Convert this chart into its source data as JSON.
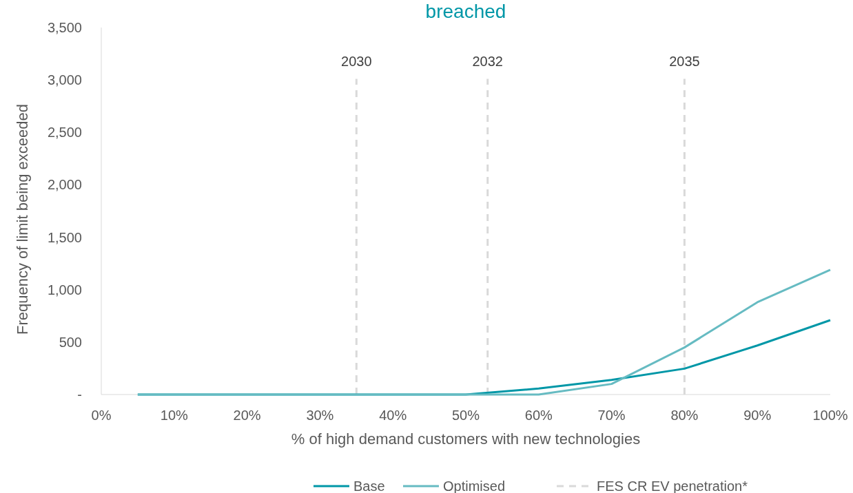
{
  "chart_data": {
    "type": "line",
    "title": "breached",
    "xlabel": "% of high demand customers with new technologies",
    "ylabel": "Frequency of limit being exceeded",
    "x": [
      5,
      10,
      20,
      30,
      40,
      50,
      60,
      70,
      80,
      90,
      100
    ],
    "series": [
      {
        "name": "Base",
        "color": "#0097a7",
        "values": [
          0,
          0,
          0,
          0,
          0,
          0,
          57,
          139,
          247,
          468,
          709
        ]
      },
      {
        "name": "Optimised",
        "color": "#66bbc2",
        "values": [
          0,
          0,
          0,
          0,
          0,
          0,
          0,
          101,
          449,
          880,
          1190
        ]
      }
    ],
    "xlim": [
      0,
      100
    ],
    "xticks": [
      {
        "value": 0,
        "label": "0%"
      },
      {
        "value": 10,
        "label": "10%"
      },
      {
        "value": 20,
        "label": "20%"
      },
      {
        "value": 30,
        "label": "30%"
      },
      {
        "value": 40,
        "label": "40%"
      },
      {
        "value": 50,
        "label": "50%"
      },
      {
        "value": 60,
        "label": "60%"
      },
      {
        "value": 70,
        "label": "70%"
      },
      {
        "value": 80,
        "label": "80%"
      },
      {
        "value": 90,
        "label": "90%"
      },
      {
        "value": 100,
        "label": "100%"
      }
    ],
    "ylim": [
      0,
      3500
    ],
    "yticks": [
      {
        "value": 0,
        "label": "-"
      },
      {
        "value": 500,
        "label": "500"
      },
      {
        "value": 1000,
        "label": "1,000"
      },
      {
        "value": 1500,
        "label": "1,500"
      },
      {
        "value": 2000,
        "label": "2,000"
      },
      {
        "value": 2500,
        "label": "2,500"
      },
      {
        "value": 3000,
        "label": "3,000"
      },
      {
        "value": 3500,
        "label": "3,500"
      }
    ],
    "ref_lines": [
      {
        "axis": "x",
        "value": 35,
        "color": "#d9d9d9",
        "line_style": "dashed"
      },
      {
        "axis": "x",
        "value": 53,
        "color": "#d9d9d9",
        "line_style": "dashed"
      },
      {
        "axis": "x",
        "value": 80,
        "color": "#d9d9d9",
        "line_style": "dashed"
      }
    ],
    "annotations": [
      "FES CR EV penetration*",
      "2030",
      "2032",
      "2035"
    ],
    "legend": "bottom",
    "grid": false,
    "marker": "none",
    "line_style": "solid"
  }
}
